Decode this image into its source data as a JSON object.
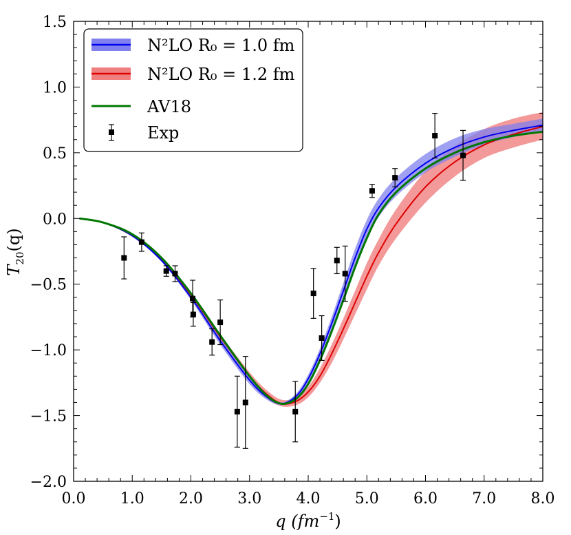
{
  "chart_data": {
    "type": "line",
    "title": "",
    "xlabel": "q (fm",
    "xlabel_sup": "−1",
    "xlabel_close": ")",
    "ylabel": "T",
    "ylabel_sub": "20",
    "ylabel_arg": "(q)",
    "xlim": [
      0.0,
      8.0
    ],
    "ylim": [
      -2.0,
      1.5
    ],
    "x_ticks": [
      0.0,
      1.0,
      2.0,
      3.0,
      4.0,
      5.0,
      6.0,
      7.0,
      8.0
    ],
    "x_tick_labels": [
      "0.0",
      "1.0",
      "2.0",
      "3.0",
      "4.0",
      "5.0",
      "6.0",
      "7.0",
      "8.0"
    ],
    "y_ticks": [
      -2.0,
      -1.5,
      -1.0,
      -0.5,
      0.0,
      0.5,
      1.0,
      1.5
    ],
    "y_tick_labels": [
      "−2.0",
      "−1.5",
      "−1.0",
      "−0.5",
      "0.0",
      "0.5",
      "1.0",
      "1.5"
    ],
    "grid": false,
    "legend_position": "top-left",
    "legend": [
      {
        "label": "N²LO R₀ = 1.0 fm",
        "color": "#0000ee",
        "band": "#8080ee"
      },
      {
        "label": "N²LO R₀ = 1.2 fm",
        "color": "#dd0000",
        "band": "#f08080"
      },
      {
        "label": "AV18",
        "color": "#007700"
      },
      {
        "label": "Exp",
        "color": "#000000"
      }
    ],
    "series": [
      {
        "name": "N²LO R₀ = 1.0 fm",
        "color": "#0000ee",
        "band_color": "#8080ee",
        "x": [
          0.1,
          0.5,
          1.0,
          1.5,
          2.0,
          2.5,
          3.0,
          3.3,
          3.55,
          3.8,
          4.0,
          4.2,
          4.4,
          4.6,
          4.8,
          5.0,
          5.2,
          5.5,
          6.0,
          6.5,
          7.0,
          7.5,
          8.0
        ],
        "y": [
          0.0,
          -0.03,
          -0.13,
          -0.32,
          -0.6,
          -0.93,
          -1.23,
          -1.36,
          -1.41,
          -1.35,
          -1.22,
          -1.03,
          -0.8,
          -0.55,
          -0.3,
          -0.08,
          0.08,
          0.24,
          0.42,
          0.54,
          0.62,
          0.67,
          0.71
        ],
        "lower": [
          0.0,
          -0.03,
          -0.14,
          -0.33,
          -0.62,
          -0.96,
          -1.26,
          -1.38,
          -1.42,
          -1.37,
          -1.25,
          -1.07,
          -0.85,
          -0.61,
          -0.37,
          -0.15,
          0.01,
          0.17,
          0.35,
          0.47,
          0.56,
          0.62,
          0.66
        ],
        "upper": [
          0.0,
          -0.03,
          -0.12,
          -0.31,
          -0.58,
          -0.9,
          -1.2,
          -1.34,
          -1.4,
          -1.33,
          -1.19,
          -0.99,
          -0.75,
          -0.49,
          -0.23,
          -0.01,
          0.15,
          0.31,
          0.49,
          0.61,
          0.68,
          0.72,
          0.76
        ]
      },
      {
        "name": "N²LO R₀ = 1.2 fm",
        "color": "#dd0000",
        "band_color": "#f08080",
        "x": [
          0.1,
          0.5,
          1.0,
          1.5,
          2.0,
          2.5,
          3.0,
          3.3,
          3.55,
          3.8,
          4.0,
          4.2,
          4.4,
          4.6,
          4.8,
          5.0,
          5.2,
          5.5,
          6.0,
          6.5,
          7.0,
          7.5,
          8.0
        ],
        "y": [
          0.0,
          -0.03,
          -0.13,
          -0.31,
          -0.58,
          -0.9,
          -1.2,
          -1.34,
          -1.41,
          -1.39,
          -1.32,
          -1.2,
          -1.03,
          -0.84,
          -0.64,
          -0.44,
          -0.26,
          -0.04,
          0.24,
          0.43,
          0.56,
          0.64,
          0.7
        ],
        "lower": [
          0.0,
          -0.03,
          -0.14,
          -0.32,
          -0.6,
          -0.92,
          -1.22,
          -1.37,
          -1.43,
          -1.42,
          -1.36,
          -1.25,
          -1.1,
          -0.92,
          -0.73,
          -0.54,
          -0.36,
          -0.15,
          0.12,
          0.32,
          0.46,
          0.54,
          0.6
        ],
        "upper": [
          0.0,
          -0.03,
          -0.12,
          -0.3,
          -0.56,
          -0.88,
          -1.17,
          -1.31,
          -1.38,
          -1.36,
          -1.28,
          -1.14,
          -0.96,
          -0.76,
          -0.55,
          -0.34,
          -0.16,
          0.07,
          0.36,
          0.55,
          0.68,
          0.76,
          0.81
        ]
      },
      {
        "name": "AV18",
        "color": "#007700",
        "x": [
          0.1,
          0.5,
          1.0,
          1.5,
          2.0,
          2.5,
          3.0,
          3.3,
          3.55,
          3.8,
          4.0,
          4.2,
          4.4,
          4.6,
          4.8,
          5.0,
          5.2,
          5.5,
          6.0,
          6.5,
          7.0,
          7.5,
          8.0
        ],
        "y": [
          0.0,
          -0.03,
          -0.12,
          -0.3,
          -0.57,
          -0.89,
          -1.2,
          -1.35,
          -1.41,
          -1.37,
          -1.26,
          -1.08,
          -0.86,
          -0.62,
          -0.37,
          -0.15,
          0.03,
          0.2,
          0.38,
          0.5,
          0.58,
          0.63,
          0.66
        ]
      }
    ],
    "experiment": {
      "name": "Exp",
      "color": "#000000",
      "x": [
        0.86,
        1.16,
        1.58,
        1.73,
        2.03,
        2.04,
        2.36,
        2.5,
        2.79,
        2.93,
        3.78,
        4.09,
        4.23,
        4.49,
        4.63,
        5.09,
        5.48,
        6.16,
        6.64
      ],
      "y": [
        -0.3,
        -0.18,
        -0.4,
        -0.42,
        -0.61,
        -0.73,
        -0.94,
        -0.79,
        -1.47,
        -1.4,
        -1.47,
        -0.57,
        -0.91,
        -0.32,
        -0.42,
        0.21,
        0.31,
        0.63,
        0.48
      ],
      "err": [
        0.16,
        0.07,
        0.04,
        0.06,
        0.14,
        0.09,
        0.1,
        0.17,
        0.27,
        0.35,
        0.23,
        0.19,
        0.17,
        0.1,
        0.21,
        0.05,
        0.07,
        0.17,
        0.19
      ]
    }
  }
}
